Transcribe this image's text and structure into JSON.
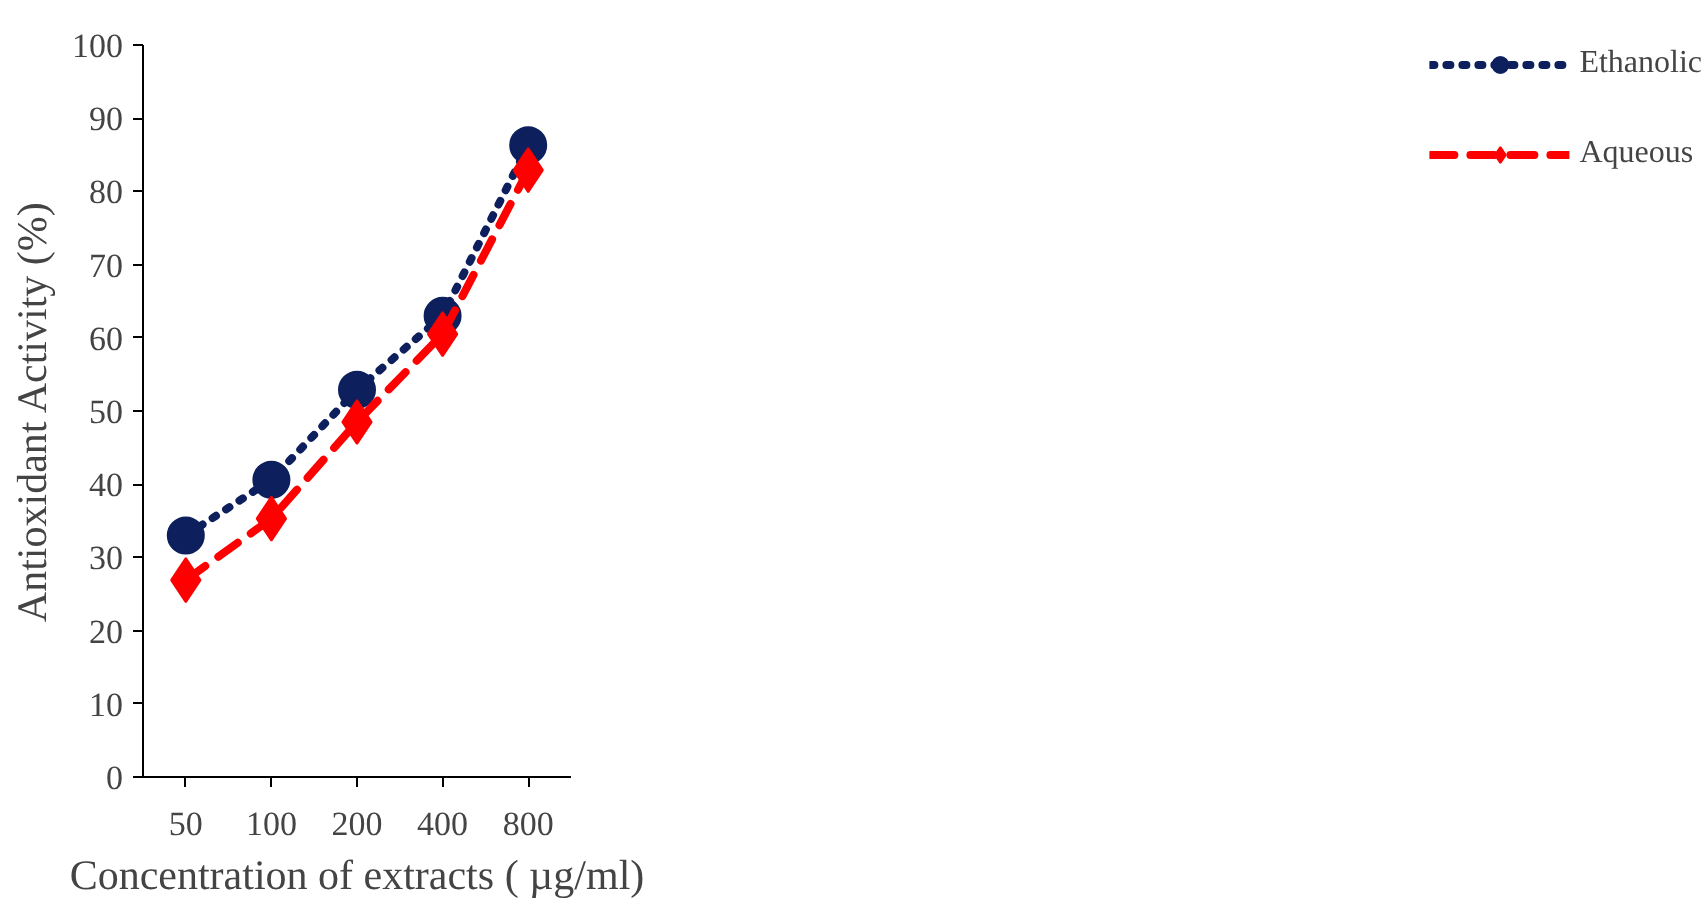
{
  "chart_data": {
    "type": "line",
    "xlabel": "Concentration of extracts ( µg/ml)",
    "ylabel": "Antioxidant Activity (%)",
    "categories": [
      "50",
      "100",
      "200",
      "400",
      "800"
    ],
    "series": [
      {
        "name": "Ethanolic",
        "color": "#0d1f5c",
        "values": [
          33.0,
          40.6,
          52.9,
          63.0,
          86.3
        ],
        "marker": "circle",
        "line_style": "dotted"
      },
      {
        "name": "Aqueous",
        "color": "#ff0000",
        "values": [
          26.9,
          35.3,
          48.5,
          60.5,
          82.9
        ],
        "marker": "diamond",
        "line_style": "dashed"
      }
    ],
    "ylim": [
      0,
      100
    ],
    "yticks": [
      0,
      10,
      20,
      30,
      40,
      50,
      60,
      70,
      80,
      90,
      100
    ],
    "grid": false,
    "legend": "right"
  }
}
